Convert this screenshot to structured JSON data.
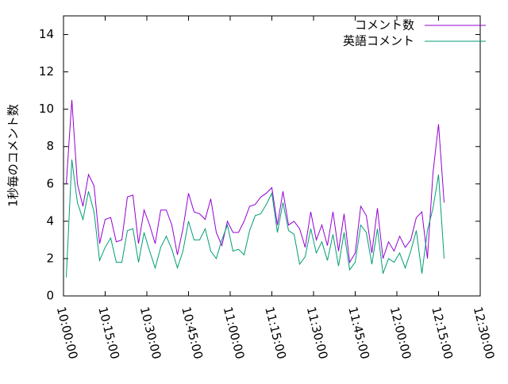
{
  "chart_data": {
    "type": "line",
    "ylabel": "1秒毎のコメント数",
    "x": [
      "10:01:00",
      "10:03:00",
      "10:05:00",
      "10:07:00",
      "10:09:00",
      "10:11:00",
      "10:13:00",
      "10:15:00",
      "10:17:00",
      "10:19:00",
      "10:21:00",
      "10:23:00",
      "10:25:00",
      "10:27:00",
      "10:29:00",
      "10:31:00",
      "10:33:00",
      "10:35:00",
      "10:37:00",
      "10:39:00",
      "10:41:00",
      "10:43:00",
      "10:45:00",
      "10:47:00",
      "10:49:00",
      "10:51:00",
      "10:53:00",
      "10:55:00",
      "10:57:00",
      "10:59:00",
      "11:01:00",
      "11:03:00",
      "11:05:00",
      "11:07:00",
      "11:09:00",
      "11:11:00",
      "11:13:00",
      "11:15:00",
      "11:17:00",
      "11:19:00",
      "11:21:00",
      "11:23:00",
      "11:25:00",
      "11:27:00",
      "11:29:00",
      "11:31:00",
      "11:33:00",
      "11:35:00",
      "11:37:00",
      "11:39:00",
      "11:41:00",
      "11:43:00",
      "11:45:00",
      "11:47:00",
      "11:49:00",
      "11:51:00",
      "11:53:00",
      "11:55:00",
      "11:57:00",
      "11:59:00",
      "12:01:00",
      "12:03:00",
      "12:05:00",
      "12:07:00",
      "12:09:00",
      "12:11:00",
      "12:13:00",
      "12:15:00",
      "12:17:00"
    ],
    "series": [
      {
        "name": "コメント数",
        "color": "#9400d3",
        "values": [
          6.0,
          10.5,
          6.0,
          4.8,
          6.5,
          5.9,
          2.8,
          4.1,
          4.2,
          2.9,
          3.0,
          5.3,
          5.4,
          2.8,
          4.6,
          3.8,
          2.8,
          4.6,
          4.6,
          3.8,
          2.2,
          3.6,
          5.5,
          4.5,
          4.4,
          4.1,
          5.2,
          3.4,
          2.7,
          4.0,
          3.4,
          3.4,
          4.0,
          4.8,
          4.9,
          5.3,
          5.5,
          5.8,
          3.8,
          5.6,
          3.8,
          4.0,
          3.6,
          2.6,
          4.5,
          3.0,
          3.8,
          2.7,
          4.5,
          2.4,
          4.4,
          1.8,
          2.3,
          4.8,
          4.3,
          2.3,
          4.7,
          2.0,
          2.9,
          2.4,
          3.2,
          2.6,
          3.0,
          4.2,
          4.5,
          2.0,
          6.6,
          9.2,
          5.0
        ]
      },
      {
        "name": "英語コメント",
        "color": "#009e73",
        "values": [
          1.0,
          7.3,
          5.0,
          4.1,
          5.6,
          4.5,
          1.9,
          2.6,
          3.1,
          1.8,
          1.8,
          3.5,
          3.6,
          1.8,
          3.4,
          2.4,
          1.5,
          2.6,
          3.2,
          2.5,
          1.5,
          2.4,
          4.0,
          3.0,
          3.0,
          3.6,
          2.4,
          2.0,
          3.0,
          3.8,
          2.4,
          2.5,
          2.2,
          3.5,
          4.3,
          4.4,
          4.9,
          5.5,
          3.4,
          5.0,
          3.5,
          3.3,
          1.7,
          2.1,
          3.6,
          2.3,
          2.9,
          1.9,
          3.3,
          1.6,
          3.4,
          1.4,
          1.8,
          3.8,
          3.4,
          1.7,
          3.6,
          1.2,
          2.0,
          1.8,
          2.3,
          1.5,
          2.4,
          3.5,
          1.2,
          3.5,
          4.7,
          6.5,
          2.0
        ]
      }
    ],
    "xlim": [
      "10:00:00",
      "12:30:00"
    ],
    "xticks": [
      "10:00:00",
      "10:15:00",
      "10:30:00",
      "10:45:00",
      "11:00:00",
      "11:15:00",
      "11:30:00",
      "11:45:00",
      "12:00:00",
      "12:15:00",
      "12:30:00"
    ],
    "ylim": [
      0,
      15
    ],
    "yticks": [
      0,
      2,
      4,
      6,
      8,
      10,
      12,
      14
    ],
    "legend": "top-right"
  }
}
